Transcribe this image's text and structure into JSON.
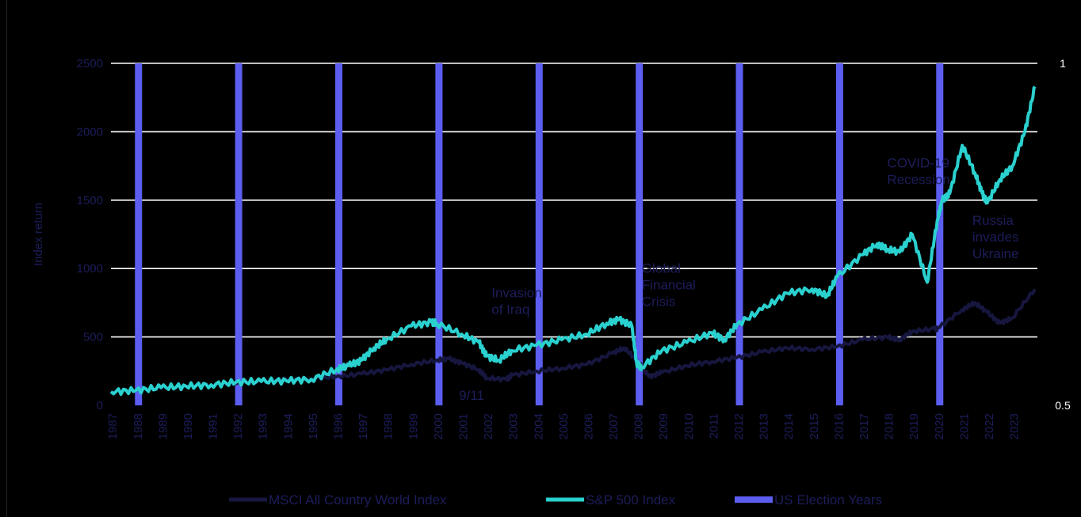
{
  "chart_data": {
    "type": "line",
    "title": "",
    "ylabel": "Index return",
    "ylim": [
      0,
      2500
    ],
    "yticks": [
      "0",
      "500",
      "1000",
      "1500",
      "2000",
      "2500"
    ],
    "y2ticks": [
      "0.5",
      "1"
    ],
    "xticks": [
      "1987",
      "1988",
      "1989",
      "1990",
      "1991",
      "1992",
      "1993",
      "1994",
      "1995",
      "1996",
      "1997",
      "1998",
      "1999",
      "2000",
      "2001",
      "2002",
      "2003",
      "2004",
      "2005",
      "2006",
      "2007",
      "2008",
      "2009",
      "2010",
      "2011",
      "2012",
      "2013",
      "2014",
      "2015",
      "2016",
      "2017",
      "2018",
      "2019",
      "2020",
      "2021",
      "2022",
      "2023"
    ],
    "grid": true,
    "legend_position": "bottom",
    "colors": {
      "msci": "#16163f",
      "sp500": "#2ad1cf",
      "election": "#5b5ef0",
      "grid": "#ffffff"
    },
    "election_years": [
      "1988",
      "1992",
      "1996",
      "2000",
      "2004",
      "2008",
      "2012",
      "2016",
      "2020"
    ],
    "annotations": [
      {
        "lines": [
          "Invasion",
          "of Iraq"
        ],
        "x": 2002.2,
        "y": 790
      },
      {
        "lines": [
          "9/11"
        ],
        "x": 2000.9,
        "y": 40
      },
      {
        "lines": [
          "Global",
          "Financial",
          "Crisis"
        ],
        "x": 2008.2,
        "y": 970
      },
      {
        "lines": [
          "COVID-19",
          "Recession"
        ],
        "x": 2018.0,
        "y": 1740
      },
      {
        "lines": [
          "Russia",
          "invades",
          "Ukraine"
        ],
        "x": 2021.4,
        "y": 1320
      }
    ],
    "series": [
      {
        "name": "MSCI All Country World Index",
        "x": [
          1987,
          1988,
          1989,
          1990,
          1991,
          1992,
          1993,
          1994,
          1995,
          1996,
          1997,
          1998,
          1999,
          2000,
          2000.5,
          2001,
          2001.7,
          2002,
          2002.8,
          2003,
          2004,
          2005,
          2006,
          2007,
          2007.5,
          2008,
          2008.5,
          2009,
          2010,
          2011,
          2012,
          2013,
          2014,
          2015,
          2016,
          2017,
          2018,
          2018.5,
          2019,
          2019.9,
          2020,
          2021,
          2021.5,
          2022,
          2022.5,
          2023,
          2023.9
        ],
        "y": [
          100,
          110,
          125,
          140,
          150,
          160,
          175,
          190,
          195,
          210,
          230,
          260,
          300,
          330,
          340,
          310,
          260,
          200,
          190,
          220,
          250,
          270,
          300,
          380,
          420,
          330,
          210,
          240,
          290,
          320,
          350,
          390,
          420,
          410,
          430,
          480,
          500,
          480,
          540,
          560,
          560,
          700,
          750,
          680,
          600,
          640,
          850
        ]
      },
      {
        "name": "S&P 500 Index",
        "x": [
          1987,
          1988,
          1989,
          1990,
          1991,
          1992,
          1993,
          1994,
          1995,
          1996,
          1996.5,
          1997,
          1997.5,
          1998,
          1999,
          1999.8,
          2000,
          2001,
          2001.7,
          2002,
          2002.5,
          2003,
          2004,
          2005,
          2006,
          2006.8,
          2007.3,
          2007.8,
          2008,
          2008.2,
          2009,
          2010,
          2011,
          2011.5,
          2012,
          2013,
          2014,
          2015,
          2015.6,
          2016,
          2017,
          2017.6,
          2018,
          2018.5,
          2019,
          2019.6,
          2020,
          2020.2,
          2020.5,
          2021,
          2021.5,
          2021.8,
          2022,
          2022.5,
          2023,
          2023.5,
          2023.9
        ],
        "y": [
          100,
          110,
          130,
          140,
          150,
          170,
          175,
          180,
          190,
          260,
          290,
          330,
          420,
          480,
          580,
          610,
          600,
          520,
          460,
          360,
          330,
          400,
          440,
          480,
          520,
          600,
          630,
          580,
          300,
          280,
          400,
          460,
          530,
          480,
          590,
          700,
          820,
          850,
          800,
          940,
          1100,
          1180,
          1140,
          1120,
          1250,
          900,
          1350,
          1500,
          1550,
          1900,
          1700,
          1550,
          1480,
          1650,
          1750,
          2000,
          2330
        ]
      },
      {
        "name": "US Election Years"
      }
    ]
  }
}
